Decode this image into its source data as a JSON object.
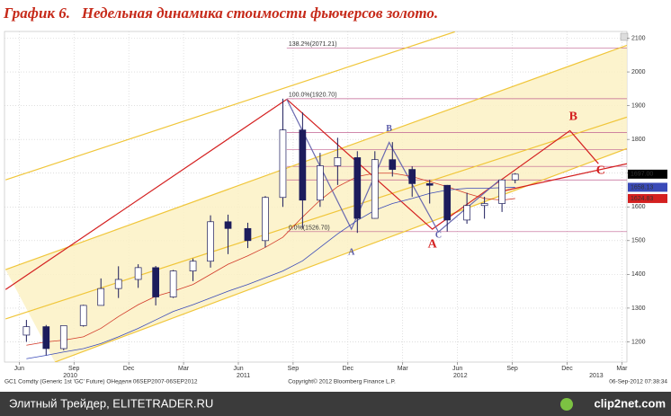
{
  "chart_data": {
    "type": "candlestick",
    "title": "График 6.   Недельная динамика стоимости фьючерсов золото.",
    "xlim": [
      2010.35,
      2013.19
    ],
    "ylim": [
      1140,
      2120
    ],
    "yticks": [
      1200,
      1300,
      1400,
      1500,
      1600,
      1700,
      1800,
      1900,
      2000,
      2100
    ],
    "xticks": [
      {
        "value": 2010.417,
        "label": "Jun"
      },
      {
        "value": 2010.667,
        "label": "Sep"
      },
      {
        "value": 2010.917,
        "label": "Dec"
      },
      {
        "value": 2011.167,
        "label": "Mar"
      },
      {
        "value": 2011.417,
        "label": "Jun"
      },
      {
        "value": 2011.667,
        "label": "Sep"
      },
      {
        "value": 2011.917,
        "label": "Dec"
      },
      {
        "value": 2012.167,
        "label": "Mar"
      },
      {
        "value": 2012.417,
        "label": "Jun"
      },
      {
        "value": 2012.667,
        "label": "Sep"
      },
      {
        "value": 2012.917,
        "label": "Dec"
      },
      {
        "value": 2013.167,
        "label": "Mar"
      }
    ],
    "year_ticks": [
      {
        "value": 2010.65,
        "label": "2010"
      },
      {
        "value": 2011.44,
        "label": "2011"
      },
      {
        "value": 2012.43,
        "label": "2012"
      },
      {
        "value": 2013.05,
        "label": "2013"
      }
    ],
    "grid": true,
    "up_color": "#ffffff",
    "down_color": "#1c1c5c",
    "candles": {
      "x": [
        2010.45,
        2010.54,
        2010.62,
        2010.71,
        2010.79,
        2010.87,
        2010.96,
        2011.04,
        2011.12,
        2011.21,
        2011.29,
        2011.37,
        2011.46,
        2011.54,
        2011.62,
        2011.71,
        2011.79,
        2011.87,
        2011.96,
        2012.04,
        2012.12,
        2012.21,
        2012.29,
        2012.37,
        2012.46,
        2012.54,
        2012.62,
        2012.68
      ],
      "open": [
        1220,
        1245,
        1180,
        1248,
        1308,
        1358,
        1385,
        1420,
        1333,
        1410,
        1439,
        1556,
        1536,
        1500,
        1628,
        1828,
        1620,
        1722,
        1746,
        1566,
        1740,
        1711,
        1669,
        1664,
        1561,
        1604,
        1610,
        1680
      ],
      "high": [
        1265,
        1250,
        1240,
        1310,
        1388,
        1424,
        1430,
        1425,
        1413,
        1447,
        1575,
        1577,
        1553,
        1632,
        1920.7,
        1880,
        1760,
        1805,
        1765,
        1765,
        1792,
        1720,
        1680,
        1665,
        1642,
        1630,
        1680,
        1700
      ],
      "low": [
        1200,
        1160,
        1175,
        1245,
        1310,
        1330,
        1360,
        1308,
        1330,
        1380,
        1420,
        1460,
        1478,
        1480,
        1600,
        1535,
        1600,
        1665,
        1523,
        1565,
        1690,
        1630,
        1610,
        1527,
        1550,
        1565,
        1585,
        1670
      ],
      "close": [
        1245,
        1180,
        1248,
        1308,
        1358,
        1385,
        1420,
        1333,
        1410,
        1439,
        1556,
        1536,
        1500,
        1628,
        1828,
        1620,
        1722,
        1746,
        1566,
        1740,
        1711,
        1669,
        1664,
        1561,
        1604,
        1610,
        1680,
        1697
      ]
    },
    "lines": [
      {
        "color": "#d23a2a",
        "values": [
          1190,
          1200,
          1205,
          1215,
          1240,
          1275,
          1310,
          1335,
          1350,
          1370,
          1400,
          1430,
          1455,
          1480,
          1510,
          1570,
          1620,
          1660,
          1690,
          1700,
          1700,
          1690,
          1675,
          1660,
          1640,
          1625,
          1620,
          1624.83
        ]
      },
      {
        "color": "#3a4ab8",
        "values": [
          1150,
          1160,
          1170,
          1180,
          1195,
          1215,
          1240,
          1265,
          1290,
          1310,
          1330,
          1350,
          1370,
          1390,
          1410,
          1440,
          1480,
          1520,
          1560,
          1590,
          1610,
          1625,
          1640,
          1650,
          1655,
          1655,
          1657,
          1658.13
        ]
      }
    ],
    "band": {
      "fill": "#fcf1c4",
      "upper": {
        "x": [
          2010.355,
          2013.19
        ],
        "y": [
          1414,
          2079
        ]
      },
      "lower": {
        "x": [
          2010.58,
          2013.19
        ],
        "y": [
          1140,
          1773
        ]
      }
    },
    "trendlines": [
      {
        "color": "#f0c63a",
        "x": [
          2010.355,
          2012.405
        ],
        "y": [
          1680,
          2119
        ]
      },
      {
        "color": "#f0c63a",
        "x": [
          2010.355,
          2013.19
        ],
        "y": [
          1414,
          2079
        ]
      },
      {
        "color": "#f0c63a",
        "x": [
          2010.355,
          2013.19
        ],
        "y": [
          1268,
          1866
        ]
      },
      {
        "color": "#f0c63a",
        "x": [
          2010.58,
          2013.19
        ],
        "y": [
          1140,
          1773
        ]
      },
      {
        "color": "#d42020",
        "x": [
          2010.355,
          2011.638
        ],
        "y": [
          1355,
          1919
        ]
      },
      {
        "color": "#d42020",
        "x": [
          2011.638,
          2012.302,
          2012.93,
          2013.06
        ],
        "y": [
          1919,
          1534,
          1826,
          1728
        ]
      },
      {
        "color": "#d42020",
        "x": [
          2012.61,
          2013.19
        ],
        "y": [
          1645,
          1728
        ]
      },
      {
        "color": "#6a6ab0",
        "x": [
          2011.638,
          2011.933,
          2012.105,
          2012.33,
          2012.61
        ],
        "y": [
          1919,
          1534,
          1791,
          1526,
          1680
        ]
      }
    ],
    "fib_color": "#c06090",
    "fib_start": 2011.638,
    "fib_levels": [
      {
        "value": 2071.21,
        "label": "138.2%(2071.21)"
      },
      {
        "value": 1920.7,
        "label": "100.0%(1920.70)"
      },
      1820,
      1770,
      1720,
      1680,
      {
        "value": 1526.7,
        "label": "0.0%(1526.70)"
      }
    ],
    "price_tags": [
      {
        "value": 1697.0,
        "label": "1697.00",
        "color": "#000000"
      },
      {
        "value": 1658.13,
        "label": "1658.13",
        "color": "#3a4ab8"
      },
      {
        "value": 1624.83,
        "label": "1624.83",
        "color": "#d42020"
      }
    ],
    "annotations": [
      {
        "text": "A",
        "x": 2011.933,
        "y": 1464,
        "color": "#5a5aa8"
      },
      {
        "text": "B",
        "x": 2012.105,
        "y": 1831,
        "color": "#5a5aa8"
      },
      {
        "text": "C",
        "x": 2012.33,
        "y": 1515,
        "color": "#5a5aa8"
      },
      {
        "text": "A",
        "x": 2012.302,
        "y": 1488,
        "color": "#d42020"
      },
      {
        "text": "B",
        "x": 2012.945,
        "y": 1866,
        "color": "#d42020"
      },
      {
        "text": "C",
        "x": 2013.07,
        "y": 1706,
        "color": "#d42020"
      }
    ],
    "footer_left": "GC1 Comdty (Generic 1st 'GC' Future) ОНеделя 06SEP2007-06SEP2012",
    "footer_center": "Copyright© 2012 Bloomberg Finance L.P.",
    "footer_right": "06-Sep-2012 07:38:34",
    "source_left": "Элитный Трейдер, ELITETRADER.RU",
    "source_right": "clip2net.com"
  }
}
